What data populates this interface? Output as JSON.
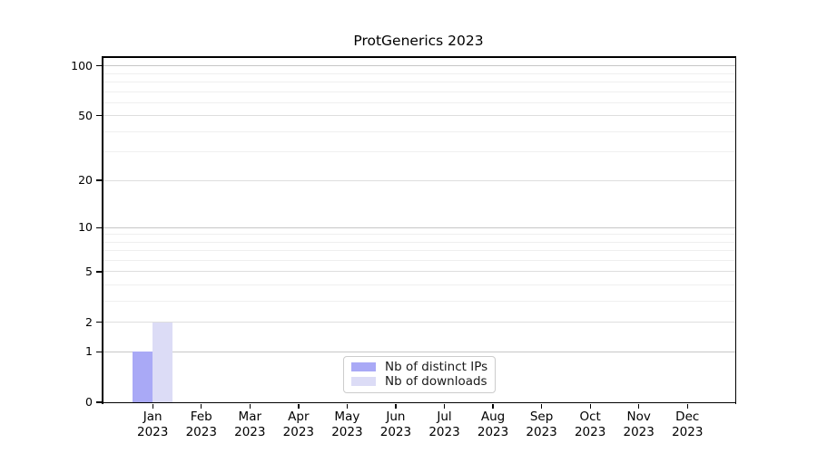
{
  "chart_data": {
    "type": "bar",
    "title": "ProtGenerics 2023",
    "categories": [
      "Jan",
      "Feb",
      "Mar",
      "Apr",
      "May",
      "Jun",
      "Jul",
      "Aug",
      "Sep",
      "Oct",
      "Nov",
      "Dec"
    ],
    "category_year": "2023",
    "series": [
      {
        "name": "Nb of distinct IPs",
        "color": "#a9a9f6",
        "values": [
          1,
          0,
          0,
          0,
          0,
          0,
          0,
          0,
          0,
          0,
          0,
          0
        ]
      },
      {
        "name": "Nb of downloads",
        "color": "#dcdcf6",
        "values": [
          2,
          0,
          0,
          0,
          0,
          0,
          0,
          0,
          0,
          0,
          0,
          0
        ]
      }
    ],
    "xlabel": "",
    "ylabel": "",
    "yscale": "log1p",
    "ylim": [
      0,
      113
    ],
    "yticks": [
      0,
      1,
      2,
      5,
      10,
      20,
      50,
      100
    ],
    "gridlines": {
      "major": {
        "values": [
          1,
          10,
          100
        ],
        "color": "#c7c7c7"
      },
      "mid": {
        "values": [
          2,
          5,
          20,
          50
        ],
        "color": "#dedede"
      },
      "minor": {
        "values": [
          3,
          4,
          6,
          7,
          8,
          9,
          30,
          40,
          60,
          70,
          80,
          90
        ],
        "color": "#efefef"
      }
    },
    "grid": "on",
    "legend_position": "bottom-center",
    "axis_color": "#000000",
    "background_color": "#ffffff"
  }
}
